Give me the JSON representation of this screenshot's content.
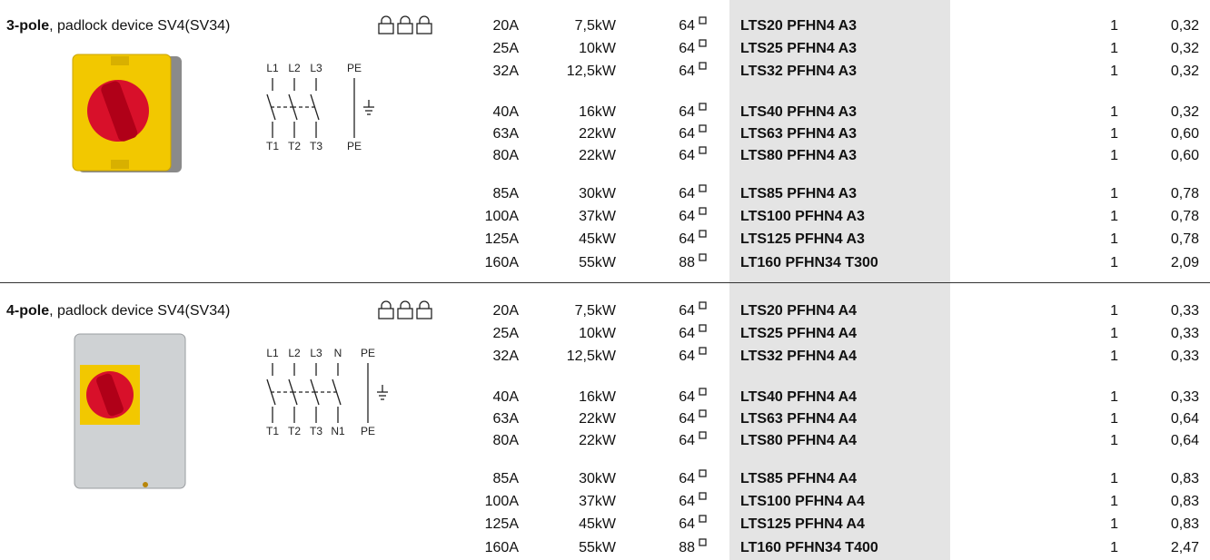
{
  "sections": [
    {
      "title_bold": "3-pole",
      "title_rest": ", padlock device SV4(SV34)",
      "diagram": {
        "top": [
          "L1",
          "L2",
          "L3",
          "PE"
        ],
        "bottom": [
          "T1",
          "T2",
          "T3",
          "PE"
        ]
      },
      "groups": [
        [
          [
            "20A",
            "7,5kW",
            "64",
            "LTS20 PFHN4 A3",
            "1",
            "0,32"
          ],
          [
            "25A",
            "10kW",
            "64",
            "LTS25 PFHN4 A3",
            "1",
            "0,32"
          ],
          [
            "32A",
            "12,5kW",
            "64",
            "LTS32 PFHN4 A3",
            "1",
            "0,32"
          ]
        ],
        [
          [
            "40A",
            "16kW",
            "64",
            "LTS40 PFHN4 A3",
            "1",
            "0,32"
          ],
          [
            "63A",
            "22kW",
            "64",
            "LTS63 PFHN4 A3",
            "1",
            "0,60"
          ],
          [
            "80A",
            "22kW",
            "64",
            "LTS80 PFHN4 A3",
            "1",
            "0,60"
          ]
        ],
        [
          [
            "85A",
            "30kW",
            "64",
            "LTS85 PFHN4 A3",
            "1",
            "0,78"
          ],
          [
            "100A",
            "37kW",
            "64",
            "LTS100 PFHN4 A3",
            "1",
            "0,78"
          ],
          [
            "125A",
            "45kW",
            "64",
            "LTS125 PFHN4 A3",
            "1",
            "0,78"
          ],
          [
            "160A",
            "55kW",
            "88",
            "LT160 PFHN34 T300",
            "1",
            "2,09"
          ]
        ]
      ]
    },
    {
      "title_bold": "4-pole",
      "title_rest": ", padlock device SV4(SV34)",
      "diagram": {
        "top": [
          "L1",
          "L2",
          "L3",
          "N",
          "PE"
        ],
        "bottom": [
          "T1",
          "T2",
          "T3",
          "N1",
          "PE"
        ]
      },
      "groups": [
        [
          [
            "20A",
            "7,5kW",
            "64",
            "LTS20 PFHN4 A4",
            "1",
            "0,33"
          ],
          [
            "25A",
            "10kW",
            "64",
            "LTS25 PFHN4 A4",
            "1",
            "0,33"
          ],
          [
            "32A",
            "12,5kW",
            "64",
            "LTS32 PFHN4 A4",
            "1",
            "0,33"
          ]
        ],
        [
          [
            "40A",
            "16kW",
            "64",
            "LTS40 PFHN4 A4",
            "1",
            "0,33"
          ],
          [
            "63A",
            "22kW",
            "64",
            "LTS63 PFHN4 A4",
            "1",
            "0,64"
          ],
          [
            "80A",
            "22kW",
            "64",
            "LTS80 PFHN4 A4",
            "1",
            "0,64"
          ]
        ],
        [
          [
            "85A",
            "30kW",
            "64",
            "LTS85 PFHN4 A4",
            "1",
            "0,83"
          ],
          [
            "100A",
            "37kW",
            "64",
            "LTS100 PFHN4 A4",
            "1",
            "0,83"
          ],
          [
            "125A",
            "45kW",
            "64",
            "LTS125 PFHN4 A4",
            "1",
            "0,83"
          ],
          [
            "160A",
            "55kW",
            "88",
            "LT160 PFHN34 T400",
            "1",
            "2,47"
          ]
        ]
      ]
    }
  ]
}
